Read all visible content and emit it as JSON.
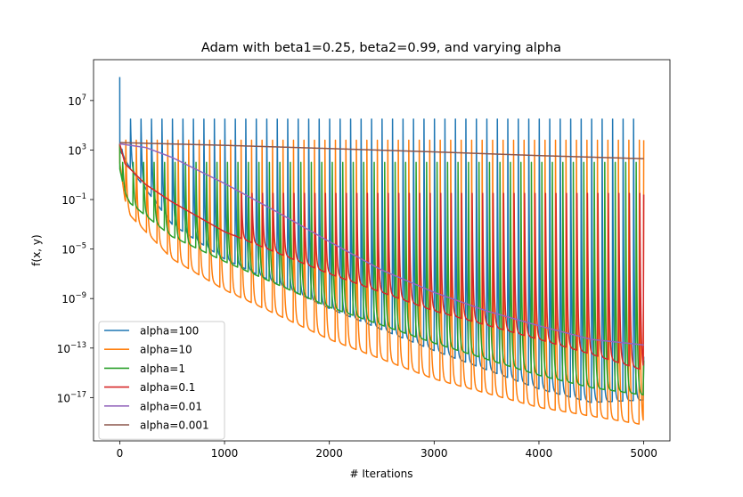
{
  "chart_data": {
    "type": "line",
    "title": "Adam with beta1=0.25, beta2=0.99, and varying alpha",
    "xlabel": "# Iterations",
    "ylabel": "f(x, y)",
    "xlim": [
      -250,
      5250
    ],
    "ylim_log10": [
      -20.5,
      10.3
    ],
    "yscale": "log",
    "x_ticks": [
      0,
      1000,
      2000,
      3000,
      4000,
      5000
    ],
    "x_tick_labels": [
      "0",
      "1000",
      "2000",
      "3000",
      "4000",
      "5000"
    ],
    "y_ticks_log10": [
      7,
      3,
      -1,
      -5,
      -9,
      -13,
      -17
    ],
    "y_tick_bases": [
      "10",
      "10",
      "10",
      "10",
      "10",
      "10",
      "10"
    ],
    "y_tick_exponents": [
      "7",
      "3",
      "−1",
      "−5",
      "−9",
      "−13",
      "−17"
    ],
    "legend_position": "lower left",
    "grid": false,
    "series": [
      {
        "name": "alpha=100",
        "color": "#1f77b4",
        "shape": "oscillating",
        "start_log10": 8.9,
        "floor": [
          [
            0,
            3.0
          ],
          [
            100,
            1.5
          ],
          [
            500,
            -3.0
          ],
          [
            1000,
            -5.8
          ],
          [
            2000,
            -9.8
          ],
          [
            3000,
            -13.2
          ],
          [
            4000,
            -16.3
          ],
          [
            4500,
            -17.4
          ],
          [
            5000,
            -17.2
          ]
        ],
        "peak_log10": 5.5,
        "period": 100,
        "phase": 0,
        "end_value_log10": -13.7
      },
      {
        "name": "alpha=10",
        "color": "#ff7f0e",
        "shape": "oscillating",
        "start_log10": 3.5,
        "floor": [
          [
            0,
            2.0
          ],
          [
            50,
            -1.0
          ],
          [
            100,
            -2.3
          ],
          [
            500,
            -5.8
          ],
          [
            1000,
            -8.3
          ],
          [
            2000,
            -12.3
          ],
          [
            3000,
            -15.5
          ],
          [
            4000,
            -17.8
          ],
          [
            5000,
            -19.2
          ]
        ],
        "peak_log10": 3.8,
        "period": 100,
        "phase": 55,
        "end_value_log10": 3.8
      },
      {
        "name": "alpha=1",
        "color": "#2ca02c",
        "shape": "oscillating",
        "start_log10": 3.5,
        "floor": [
          [
            0,
            1.5
          ],
          [
            50,
            -0.5
          ],
          [
            100,
            -1.3
          ],
          [
            500,
            -4.0
          ],
          [
            1000,
            -6.0
          ],
          [
            2000,
            -9.7
          ],
          [
            3000,
            -12.6
          ],
          [
            4000,
            -15.2
          ],
          [
            4500,
            -16.2
          ],
          [
            5000,
            -16.8
          ]
        ],
        "peak_log10": 2.0,
        "period": 100,
        "phase": 25,
        "end_value_log10": -14.0
      },
      {
        "name": "alpha=0.1",
        "color": "#d62728",
        "shape": "oscillating",
        "start_log10": 3.5,
        "floor": [
          [
            0,
            3.5
          ],
          [
            50,
            1.9
          ],
          [
            250,
            0.2
          ],
          [
            500,
            -1.2
          ],
          [
            1000,
            -3.6
          ],
          [
            2000,
            -7.0
          ],
          [
            3000,
            -10.0
          ],
          [
            4000,
            -12.3
          ],
          [
            4500,
            -13.5
          ],
          [
            5000,
            -14.8
          ]
        ],
        "peak_log10": -0.5,
        "period": 100,
        "phase": 60,
        "osc_start": 1100,
        "end_value_log10": -0.6
      },
      {
        "name": "alpha=0.01",
        "color": "#9467bd",
        "shape": "smooth",
        "points": [
          [
            0,
            3.5
          ],
          [
            250,
            3.2
          ],
          [
            500,
            2.4
          ],
          [
            1000,
            0.3
          ],
          [
            1500,
            -2.0
          ],
          [
            2000,
            -4.4
          ],
          [
            2500,
            -6.7
          ],
          [
            3000,
            -8.5
          ],
          [
            3500,
            -10.0
          ],
          [
            4000,
            -11.2
          ],
          [
            4500,
            -12.3
          ],
          [
            5000,
            -12.75
          ]
        ]
      },
      {
        "name": "alpha=0.001",
        "color": "#8c564b",
        "shape": "smooth",
        "points": [
          [
            0,
            3.6
          ],
          [
            1000,
            3.38
          ],
          [
            2000,
            3.12
          ],
          [
            3000,
            2.85
          ],
          [
            4000,
            2.55
          ],
          [
            5000,
            2.3
          ]
        ]
      }
    ]
  }
}
